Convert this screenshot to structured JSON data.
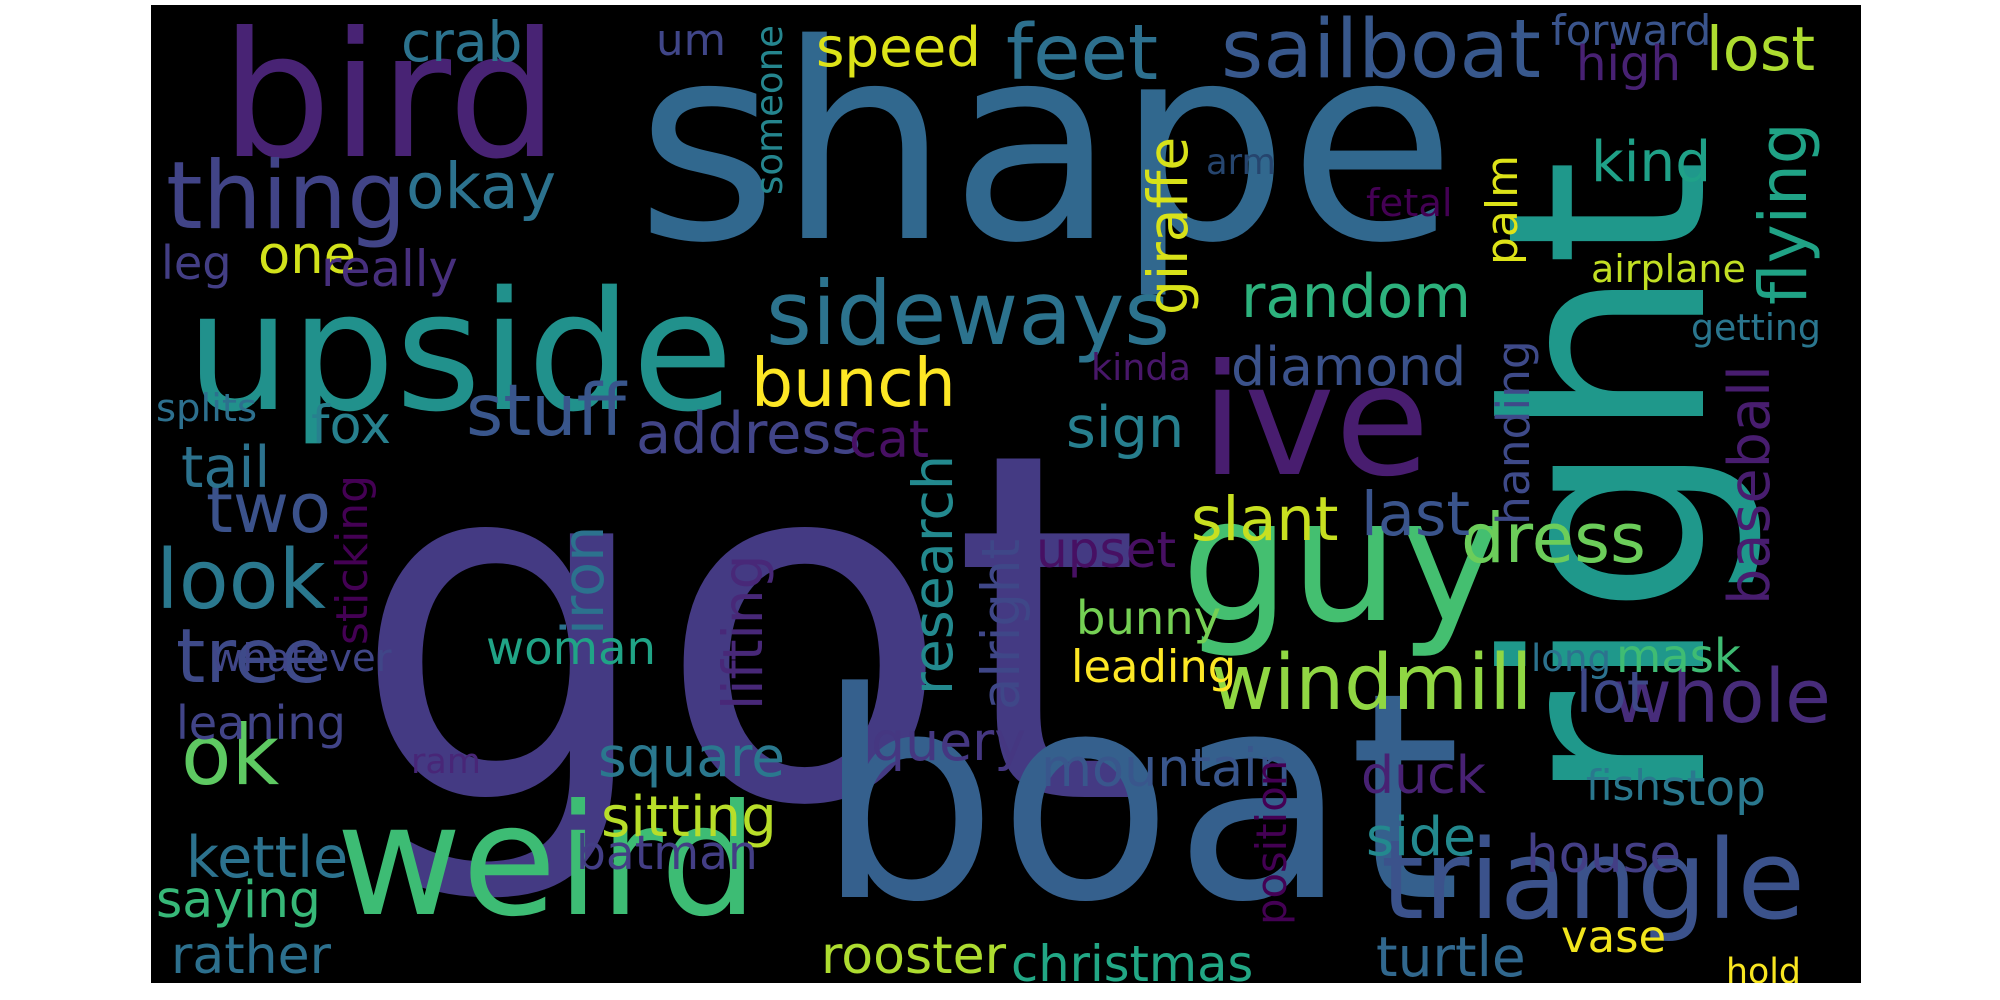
{
  "colors": {
    "background": "#000000",
    "page": "#ffffff",
    "palette": [
      "#482173",
      "#433e85",
      "#38598c",
      "#2d708e",
      "#25858e",
      "#1e9b8a",
      "#2ab07f",
      "#52c569",
      "#86d549",
      "#c2df23",
      "#fde725",
      "#440154"
    ]
  },
  "words": [
    {
      "text": "got",
      "color": "#443a83"
    },
    {
      "text": "shape",
      "color": "#31688e"
    },
    {
      "text": "right",
      "color": "#1f988b"
    },
    {
      "text": "boat",
      "color": "#35608d"
    },
    {
      "text": "bird",
      "color": "#482374"
    },
    {
      "text": "upside",
      "color": "#21918c"
    },
    {
      "text": "ive",
      "color": "#481d6f"
    },
    {
      "text": "guy",
      "color": "#44bf70"
    },
    {
      "text": "weird",
      "color": "#3dbc74"
    },
    {
      "text": "triangle",
      "color": "#3b528b"
    },
    {
      "text": "thing",
      "color": "#414487"
    },
    {
      "text": "sideways",
      "color": "#2c738e"
    },
    {
      "text": "sailboat",
      "color": "#38588c"
    },
    {
      "text": "feet",
      "color": "#2d708e"
    },
    {
      "text": "okay",
      "color": "#2c728e"
    },
    {
      "text": "stuff",
      "color": "#39568c"
    },
    {
      "text": "random",
      "color": "#2db27d"
    },
    {
      "text": "bunch",
      "color": "#fde725"
    },
    {
      "text": "flying",
      "color": "#20a386"
    },
    {
      "text": "windmill",
      "color": "#90d743"
    },
    {
      "text": "whole",
      "color": "#472c7a"
    },
    {
      "text": "dress",
      "color": "#6ccd5a"
    },
    {
      "text": "look",
      "color": "#2a788e"
    },
    {
      "text": "two",
      "color": "#3b528b"
    },
    {
      "text": "tree",
      "color": "#3e4a89"
    },
    {
      "text": "ok",
      "color": "#5ec962"
    },
    {
      "text": "speed",
      "color": "#dde318"
    },
    {
      "text": "crab",
      "color": "#2c738e"
    },
    {
      "text": "um",
      "color": "#404688"
    },
    {
      "text": "forward",
      "color": "#3a548c"
    },
    {
      "text": "high",
      "color": "#482173"
    },
    {
      "text": "lost",
      "color": "#addc30"
    },
    {
      "text": "kind",
      "color": "#1fa188"
    },
    {
      "text": "arm",
      "color": "#26456e"
    },
    {
      "text": "fetal",
      "color": "#440154"
    },
    {
      "text": "airplane",
      "color": "#c2df23"
    },
    {
      "text": "getting",
      "color": "#2a768e"
    },
    {
      "text": "giraffe",
      "color": "#d8e219"
    },
    {
      "text": "someone",
      "color": "#25858e"
    },
    {
      "text": "palm",
      "color": "#dde318"
    },
    {
      "text": "one",
      "color": "#d2e21b"
    },
    {
      "text": "leg",
      "color": "#433e85"
    },
    {
      "text": "really",
      "color": "#472f7d"
    },
    {
      "text": "diamond",
      "color": "#3b528b"
    },
    {
      "text": "kinda",
      "color": "#481769"
    },
    {
      "text": "splits",
      "color": "#2d708e"
    },
    {
      "text": "fox",
      "color": "#27808e"
    },
    {
      "text": "address",
      "color": "#414487"
    },
    {
      "text": "cat",
      "color": "#471063"
    },
    {
      "text": "sign",
      "color": "#277f8e"
    },
    {
      "text": "tail",
      "color": "#2c728e"
    },
    {
      "text": "handing",
      "color": "#3e4a89"
    },
    {
      "text": "baseball",
      "color": "#481d6f"
    },
    {
      "text": "slant",
      "color": "#c8e020"
    },
    {
      "text": "last",
      "color": "#3a548c"
    },
    {
      "text": "sticking",
      "color": "#440154"
    },
    {
      "text": "lifting",
      "color": "#482878"
    },
    {
      "text": "iron",
      "color": "#2c728e"
    },
    {
      "text": "research",
      "color": "#23898e"
    },
    {
      "text": "alright",
      "color": "#3f4788"
    },
    {
      "text": "upset",
      "color": "#471063"
    },
    {
      "text": "bunny",
      "color": "#75d054"
    },
    {
      "text": "mask",
      "color": "#3fbc73"
    },
    {
      "text": "whatever",
      "color": "#404688"
    },
    {
      "text": "woman",
      "color": "#20a486"
    },
    {
      "text": "leading",
      "color": "#fde725"
    },
    {
      "text": "long",
      "color": "#2c728e"
    },
    {
      "text": "lot",
      "color": "#3e4989"
    },
    {
      "text": "leaning",
      "color": "#414487"
    },
    {
      "text": "ram",
      "color": "#482677"
    },
    {
      "text": "square",
      "color": "#2a788e"
    },
    {
      "text": "query",
      "color": "#453781"
    },
    {
      "text": "mountain",
      "color": "#39568c"
    },
    {
      "text": "duck",
      "color": "#482173"
    },
    {
      "text": "stop",
      "color": "#2a788e"
    },
    {
      "text": "fish",
      "color": "#2a788e"
    },
    {
      "text": "position",
      "color": "#440154"
    },
    {
      "text": "sitting",
      "color": "#b8de29"
    },
    {
      "text": "side",
      "color": "#23898e"
    },
    {
      "text": "kettle",
      "color": "#2c728e"
    },
    {
      "text": "batman",
      "color": "#433e85"
    },
    {
      "text": "house",
      "color": "#433e85"
    },
    {
      "text": "saying",
      "color": "#37b878"
    },
    {
      "text": "rather",
      "color": "#2d708e"
    },
    {
      "text": "rooster",
      "color": "#addc30"
    },
    {
      "text": "christmas",
      "color": "#22a785"
    },
    {
      "text": "turtle",
      "color": "#31688e"
    },
    {
      "text": "vase",
      "color": "#f1e51d"
    },
    {
      "text": "hold",
      "color": "#f8e621"
    }
  ]
}
